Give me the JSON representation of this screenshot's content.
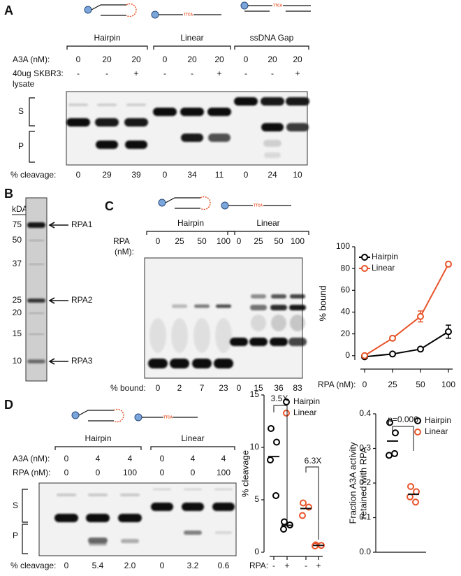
{
  "figure": {
    "A": {
      "label": "A",
      "probe": "TTCA",
      "groups": [
        "Hairpin",
        "Linear",
        "ssDNA Gap"
      ],
      "a3a_label": "A3A (nM):",
      "a3a": [
        0,
        20,
        20,
        0,
        20,
        20,
        0,
        20,
        20
      ],
      "lysate_label": [
        "40ug SKBR3:",
        "lysate"
      ],
      "lysate": [
        "-",
        "-",
        "+",
        "-",
        "-",
        "+",
        "-",
        "-",
        "+"
      ],
      "substrate_label": "S",
      "product_label": "P",
      "cleavage_label": "% cleavage:",
      "cleavage": [
        0,
        29,
        39,
        0,
        34,
        11,
        0,
        24,
        10
      ]
    },
    "B": {
      "label": "B",
      "unit": "kDA",
      "markers": [
        75,
        50,
        37,
        25,
        20,
        15,
        10
      ],
      "bands": [
        "RPA1",
        "RPA2",
        "RPA3"
      ]
    },
    "C": {
      "label": "C",
      "probe": "TTCA",
      "groups": [
        "Hairpin",
        "Linear"
      ],
      "rpa_label": [
        "RPA",
        "(nM):"
      ],
      "rpa": [
        0,
        25,
        50,
        100,
        0,
        25,
        50,
        100
      ],
      "bound_label": "% bound:",
      "bound": [
        0,
        2,
        7,
        23,
        0,
        15,
        36,
        83
      ]
    },
    "D": {
      "label": "D",
      "probe": "TTCA",
      "groups": [
        "Hairpin",
        "Linear"
      ],
      "a3a_label": "A3A (nM):",
      "a3a": [
        0,
        4,
        4,
        0,
        4,
        4
      ],
      "rpa_label": "RPA (nM):",
      "rpa": [
        0,
        0,
        100,
        0,
        0,
        100
      ],
      "substrate_label": "S",
      "product_label": "P",
      "cleavage_label": "% cleavage:",
      "cleavage": [
        "0",
        "5.4",
        "2.0",
        "0",
        "3.2",
        "0.6"
      ]
    }
  },
  "chart_data": [
    {
      "type": "line",
      "categories": [
        "0",
        "25",
        "50",
        "100"
      ],
      "xlabel": "RPA (nM):",
      "ylabel": "% bound",
      "ylim": [
        -4,
        100
      ],
      "yticks": [
        0,
        20,
        40,
        60,
        80,
        100
      ],
      "legend": "top-left",
      "series": [
        {
          "name": "Hairpin",
          "color": "#000000",
          "values": [
            -1,
            1.5,
            6,
            22
          ],
          "errors": [
            1,
            1,
            1.5,
            6
          ]
        },
        {
          "name": "Linear",
          "color": "#e8542a",
          "values": [
            0,
            16,
            36,
            84
          ],
          "errors": [
            1,
            2,
            5,
            2
          ]
        }
      ]
    },
    {
      "type": "dot",
      "categories": [
        "-",
        "+",
        "-",
        "+"
      ],
      "xlabel": "RPA:",
      "ylabel": "% cleavage",
      "ylim": [
        0,
        15
      ],
      "yticks": [
        0,
        5,
        10,
        15
      ],
      "legend": "top-right",
      "series": [
        {
          "name": "Hairpin",
          "color": "#000000",
          "values": [
            [
              11.8,
              10.5,
              8.8,
              5.4
            ],
            [
              2.9,
              2.6,
              2.2
            ],
            null,
            null
          ]
        },
        {
          "name": "Linear",
          "color": "#e8542a",
          "values": [
            null,
            null,
            [
              4.7,
              4.3,
              3.5
            ],
            [
              0.7,
              0.65,
              0.6
            ]
          ]
        }
      ],
      "annotations": [
        "3.5X",
        "6.3X"
      ]
    },
    {
      "type": "dot",
      "categories": [
        null,
        null
      ],
      "ylabel": [
        "Fraction A3A activity",
        "retained with RPA"
      ],
      "ylim": [
        0,
        0.4
      ],
      "yticks": [
        {
          "value": 0,
          "label": "0.0"
        },
        0.1,
        0.2,
        0.3,
        0.4
      ],
      "legend": "top-right",
      "series": [
        {
          "name": "Hairpin",
          "color": "#000000",
          "values": [
            [
              0.375,
              0.345,
              0.28,
              0.285
            ],
            null
          ]
        },
        {
          "name": "Linear",
          "color": "#e8542a",
          "values": [
            null,
            [
              0.19,
              0.175,
              0.16,
              0.145
            ]
          ]
        }
      ],
      "annotations": [
        "p=0.006"
      ]
    }
  ]
}
